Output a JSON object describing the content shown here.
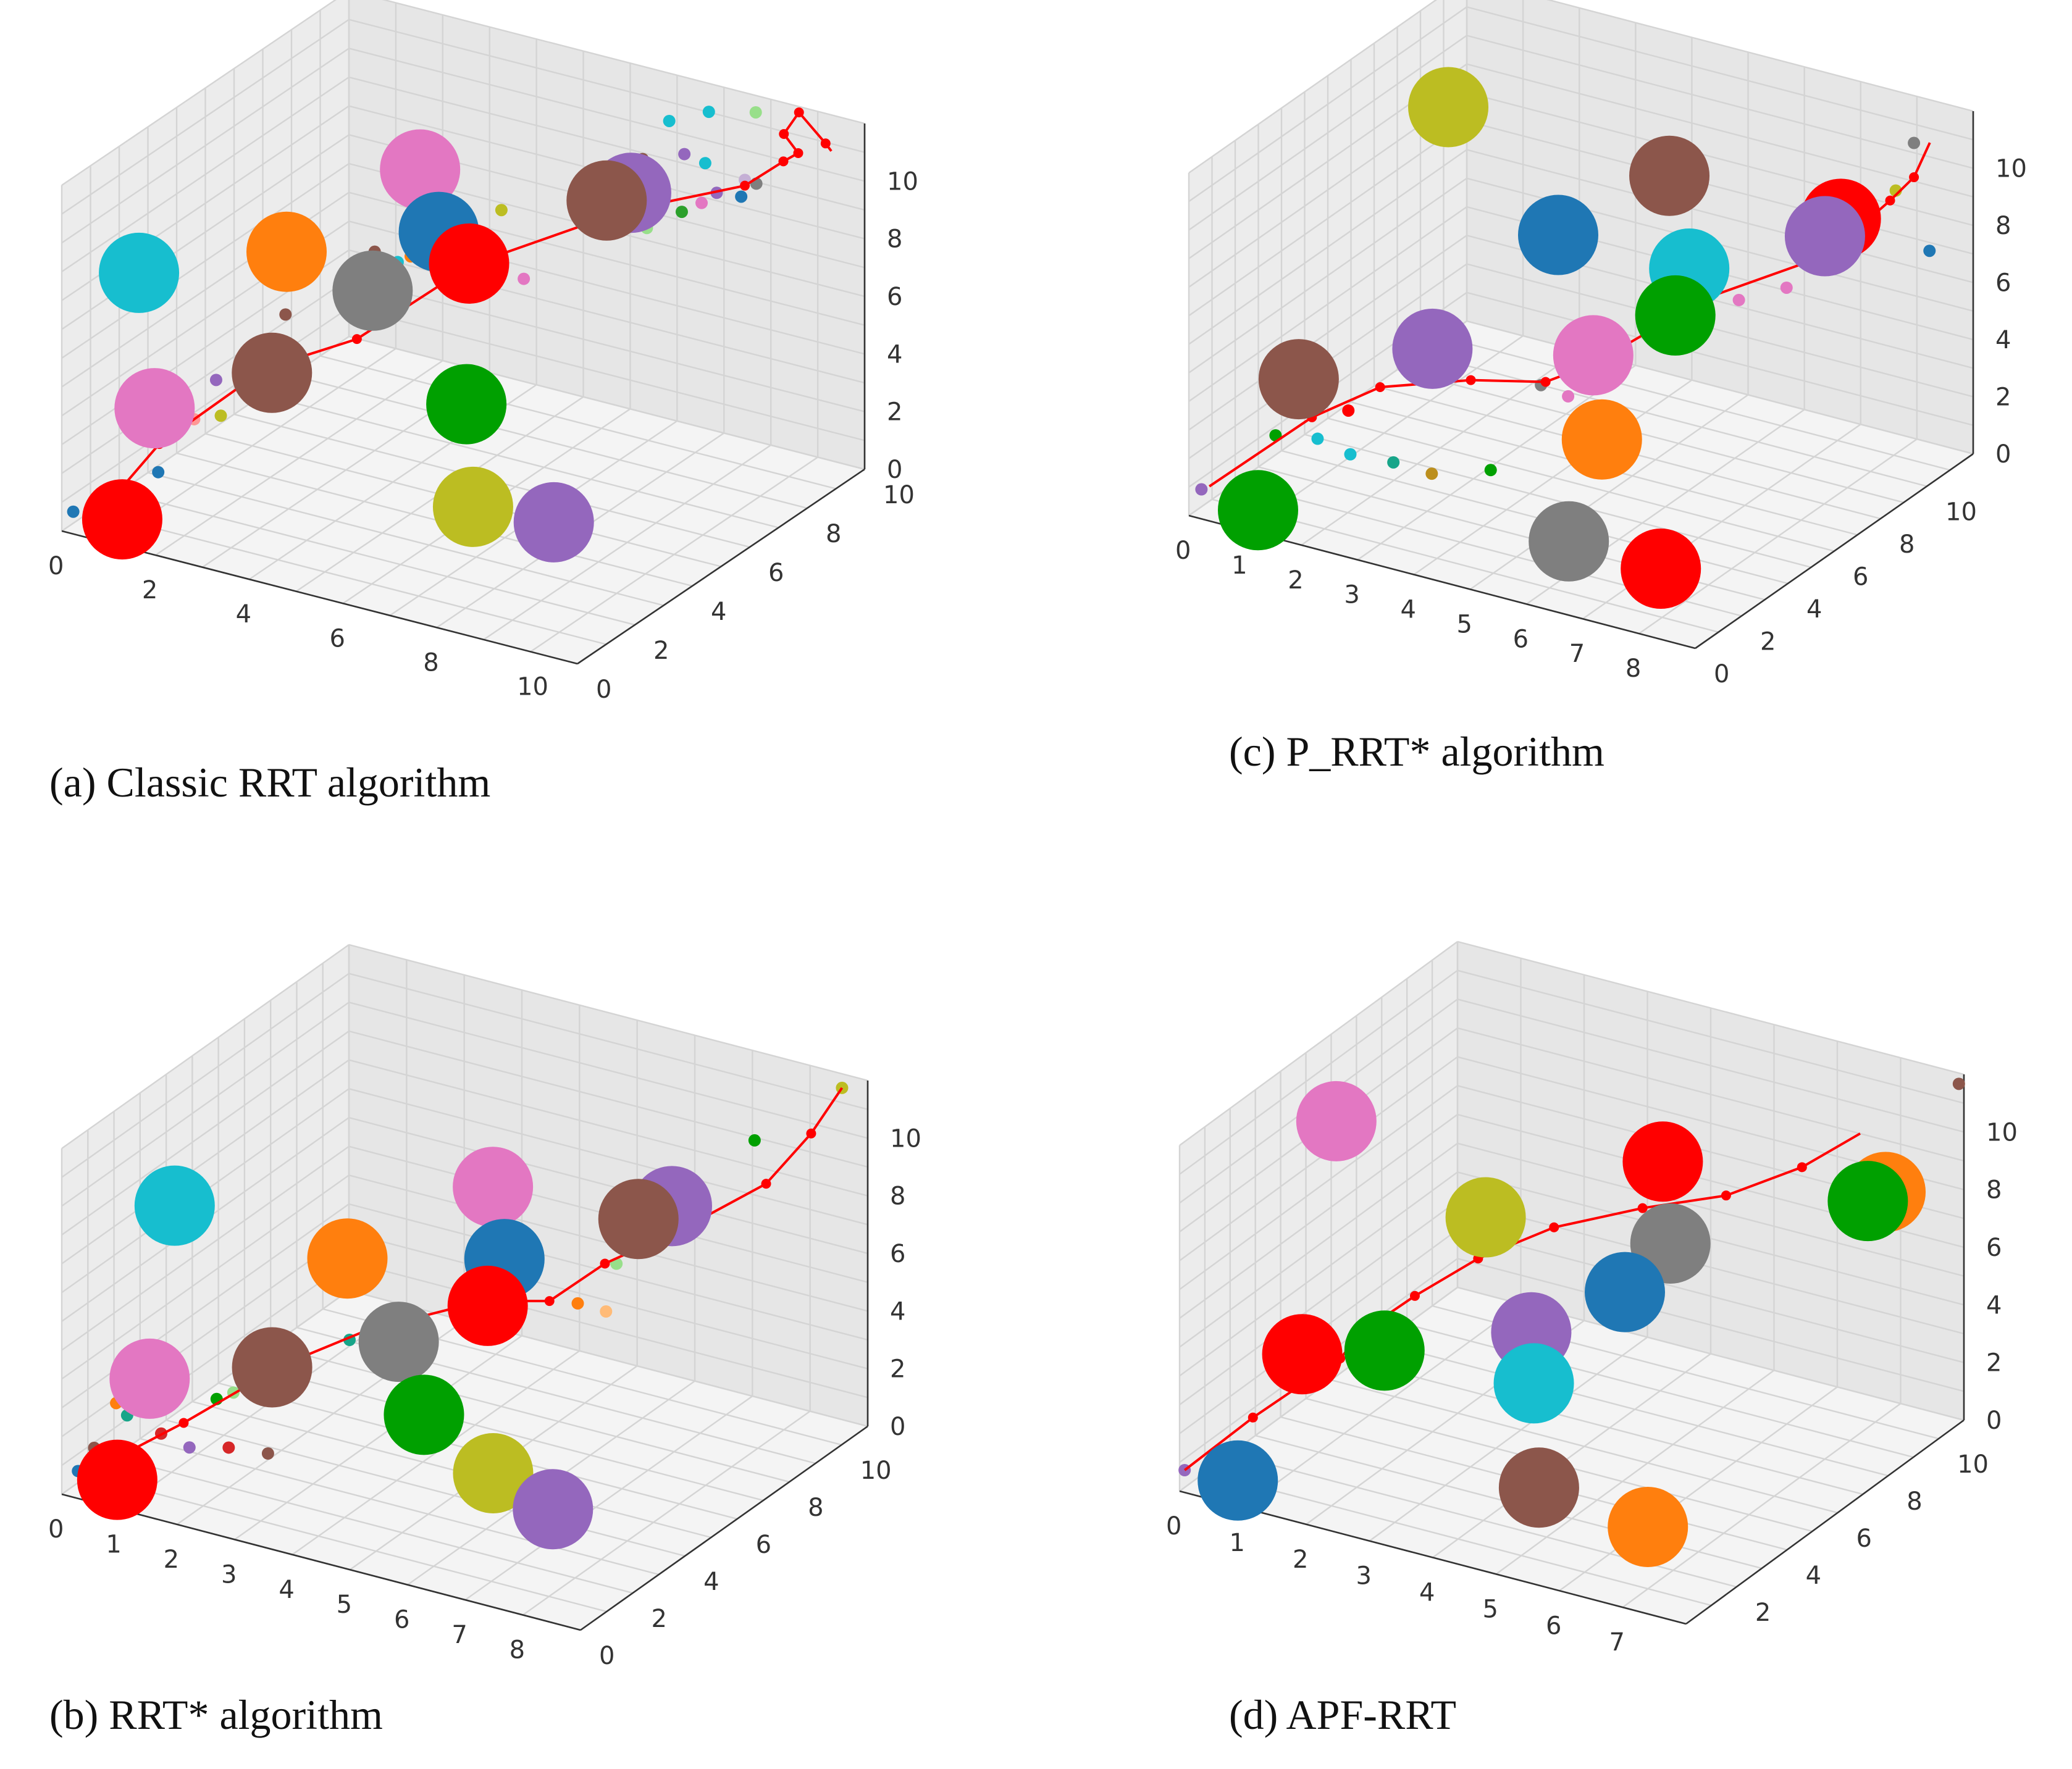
{
  "figure": {
    "background": "#ffffff",
    "path_color": "#ff0000",
    "pane_color": "#f0f0f0"
  },
  "chart_data": [
    {
      "id": "a",
      "type": "scatter",
      "caption": "(a)   Classic RRT algorithm",
      "x_ticks": [
        "0",
        "2",
        "4",
        "6",
        "8",
        "10"
      ],
      "y_ticks": [
        "0",
        "2",
        "4",
        "6",
        "8",
        "10"
      ],
      "z_ticks": [
        "0",
        "2",
        "4",
        "6",
        "8",
        "10"
      ],
      "obstacles": [
        {
          "x": 0.3,
          "y": 2.2,
          "z": 7.6,
          "color": "#17becf"
        },
        {
          "x": 3.6,
          "y": 6.6,
          "z": 9.6,
          "color": "#e377c2"
        },
        {
          "x": 7.0,
          "y": 8.4,
          "z": 9.0,
          "color": "#9467bd"
        },
        {
          "x": 6.6,
          "y": 8.2,
          "z": 8.7,
          "color": "#8c564b"
        },
        {
          "x": 2.1,
          "y": 4.4,
          "z": 7.6,
          "color": "#ff7f0e"
        },
        {
          "x": 4.0,
          "y": 6.6,
          "z": 7.6,
          "color": "#1f77b4"
        },
        {
          "x": 4.4,
          "y": 7.0,
          "z": 6.4,
          "color": "#ff0000"
        },
        {
          "x": 3.2,
          "y": 5.6,
          "z": 5.9,
          "color": "#7f7f7f"
        },
        {
          "x": 1.0,
          "y": 1.6,
          "z": 3.6,
          "color": "#e377c2"
        },
        {
          "x": 2.4,
          "y": 3.4,
          "z": 4.2,
          "color": "#8c564b"
        },
        {
          "x": 5.2,
          "y": 5.6,
          "z": 2.8,
          "color": "#00a000"
        },
        {
          "x": 0.8,
          "y": 0.8,
          "z": 0.2,
          "color": "#ff0000"
        },
        {
          "x": 6.2,
          "y": 4.2,
          "z": 0.6,
          "color": "#bcbd22"
        },
        {
          "x": 7.8,
          "y": 4.4,
          "z": 0.6,
          "color": "#9467bd"
        }
      ],
      "path": [
        [
          0.4,
          0.6,
          0.3
        ],
        [
          1.1,
          1.6,
          2.4
        ],
        [
          2.4,
          3.2,
          4.5
        ],
        [
          3.6,
          4.4,
          5.2
        ],
        [
          4.6,
          6.8,
          6.6
        ],
        [
          6.4,
          9.2,
          7.6
        ],
        [
          8.2,
          10.4,
          8.4
        ],
        [
          8.9,
          10.6,
          9.4
        ],
        [
          9.4,
          10.3,
          10.1
        ],
        [
          9.4,
          9.8,
          11.1
        ],
        [
          9.6,
          10.0,
          11.8
        ],
        [
          9.8,
          10.6,
          10.4
        ],
        [
          9.8,
          10.8,
          10.0
        ]
      ],
      "samples": [
        {
          "x": 0.0,
          "y": 0.4,
          "z": 0.4,
          "color": "#1f77b4"
        },
        {
          "x": 1.2,
          "y": 1.4,
          "z": 1.6,
          "color": "#1f77b4"
        },
        {
          "x": 1.6,
          "y": 2.0,
          "z": 3.2,
          "color": "#ff9896"
        },
        {
          "x": 1.7,
          "y": 2.6,
          "z": 4.2,
          "color": "#9467bd"
        },
        {
          "x": 2.2,
          "y": 4.2,
          "z": 5.6,
          "color": "#8c564b"
        },
        {
          "x": 2.0,
          "y": 4.6,
          "z": 6.4,
          "color": "#ff9896"
        },
        {
          "x": 2.8,
          "y": 5.4,
          "z": 6.3,
          "color": "#e377c2"
        },
        {
          "x": 3.0,
          "y": 6.0,
          "z": 6.9,
          "color": "#8c564b"
        },
        {
          "x": 3.4,
          "y": 6.6,
          "z": 6.5,
          "color": "#ff7f0e"
        },
        {
          "x": 3.6,
          "y": 7.4,
          "z": 7.2,
          "color": "#c49c94"
        },
        {
          "x": 3.4,
          "y": 7.8,
          "z": 7.9,
          "color": "#ff7f0e"
        },
        {
          "x": 3.0,
          "y": 6.8,
          "z": 6.0,
          "color": "#17becf"
        },
        {
          "x": 4.6,
          "y": 7.8,
          "z": 7.8,
          "color": "#bcbd22"
        },
        {
          "x": 5.2,
          "y": 7.6,
          "z": 5.8,
          "color": "#e377c2"
        },
        {
          "x": 6.2,
          "y": 9.4,
          "z": 7.0,
          "color": "#17a589"
        },
        {
          "x": 6.6,
          "y": 9.6,
          "z": 6.8,
          "color": "#98df8a"
        },
        {
          "x": 7.1,
          "y": 10.0,
          "z": 7.3,
          "color": "#2ca02c"
        },
        {
          "x": 7.4,
          "y": 10.2,
          "z": 7.6,
          "color": "#e377c2"
        },
        {
          "x": 7.6,
          "y": 10.4,
          "z": 7.9,
          "color": "#9467bd"
        },
        {
          "x": 8.0,
          "y": 10.6,
          "z": 7.8,
          "color": "#1f77b4"
        },
        {
          "x": 8.2,
          "y": 10.8,
          "z": 8.2,
          "color": "#7f7f7f"
        },
        {
          "x": 8.2,
          "y": 10.4,
          "z": 8.6,
          "color": "#c5b0d5"
        },
        {
          "x": 7.6,
          "y": 10.0,
          "z": 9.2,
          "color": "#17becf"
        },
        {
          "x": 7.4,
          "y": 9.6,
          "z": 9.7,
          "color": "#9467bd"
        },
        {
          "x": 7.0,
          "y": 8.8,
          "z": 9.9,
          "color": "#8c564b"
        },
        {
          "x": 7.2,
          "y": 9.4,
          "z": 10.9,
          "color": "#17becf"
        },
        {
          "x": 7.8,
          "y": 9.8,
          "z": 11.2,
          "color": "#17becf"
        },
        {
          "x": 8.8,
          "y": 9.8,
          "z": 11.6,
          "color": "#98df8a"
        },
        {
          "x": 1.8,
          "y": 2.6,
          "z": 3.0,
          "color": "#bcbd22"
        },
        {
          "x": 2.6,
          "y": 3.6,
          "z": 5.2,
          "color": "#17a589"
        }
      ]
    },
    {
      "id": "c",
      "type": "scatter",
      "caption": "(c)   P_RRT* algorithm",
      "x_ticks": [
        "0",
        "1",
        "2",
        "3",
        "4",
        "5",
        "6",
        "7",
        "8"
      ],
      "y_ticks": [
        "0",
        "2",
        "4",
        "6",
        "8",
        "10"
      ],
      "z_ticks": [
        "0",
        "2",
        "4",
        "6",
        "8",
        "10"
      ],
      "obstacles": [
        {
          "x": 1.4,
          "y": 7.8,
          "z": 10.6,
          "color": "#bcbd22"
        },
        {
          "x": 5.0,
          "y": 8.6,
          "z": 9.6,
          "color": "#8c564b"
        },
        {
          "x": 3.6,
          "y": 7.2,
          "z": 7.6,
          "color": "#1f77b4"
        },
        {
          "x": 5.6,
          "y": 8.0,
          "z": 7.0,
          "color": "#17becf"
        },
        {
          "x": 7.8,
          "y": 9.2,
          "z": 9.2,
          "color": "#ff0000"
        },
        {
          "x": 7.6,
          "y": 9.0,
          "z": 8.6,
          "color": "#9467bd"
        },
        {
          "x": 5.6,
          "y": 7.4,
          "z": 5.7,
          "color": "#00a000"
        },
        {
          "x": 4.8,
          "y": 5.8,
          "z": 4.8,
          "color": "#e377c2"
        },
        {
          "x": 2.6,
          "y": 4.2,
          "z": 4.8,
          "color": "#9467bd"
        },
        {
          "x": 0.8,
          "y": 2.8,
          "z": 3.6,
          "color": "#8c564b"
        },
        {
          "x": 5.2,
          "y": 5.2,
          "z": 2.4,
          "color": "#ff7f0e"
        },
        {
          "x": 0.9,
          "y": 0.8,
          "z": 0.2,
          "color": "#00a000"
        },
        {
          "x": 5.6,
          "y": 2.8,
          "z": 0.4,
          "color": "#7f7f7f"
        },
        {
          "x": 7.4,
          "y": 2.4,
          "z": 0.6,
          "color": "#ff0000"
        }
      ],
      "path": [
        [
          0.2,
          0.4,
          0.9
        ],
        [
          1.2,
          2.4,
          2.7
        ],
        [
          2.0,
          3.4,
          3.6
        ],
        [
          3.2,
          4.4,
          3.9
        ],
        [
          4.2,
          5.2,
          3.9
        ],
        [
          4.8,
          5.8,
          4.5
        ],
        [
          6.0,
          7.8,
          6.3
        ],
        [
          7.4,
          9.6,
          7.5
        ],
        [
          8.1,
          10.6,
          9.2
        ],
        [
          8.4,
          10.9,
          10.0
        ],
        [
          8.6,
          11.1,
          11.2
        ]
      ],
      "samples": [
        {
          "x": 0.1,
          "y": 0.3,
          "z": 0.8,
          "color": "#9467bd"
        },
        {
          "x": 0.8,
          "y": 1.8,
          "z": 2.2,
          "color": "#00a000"
        },
        {
          "x": 1.3,
          "y": 2.4,
          "z": 2.0,
          "color": "#17becf"
        },
        {
          "x": 1.8,
          "y": 2.6,
          "z": 1.6,
          "color": "#17becf"
        },
        {
          "x": 2.4,
          "y": 3.0,
          "z": 1.4,
          "color": "#17a589"
        },
        {
          "x": 3.0,
          "y": 3.2,
          "z": 1.2,
          "color": "#bc8f1d"
        },
        {
          "x": 3.8,
          "y": 3.8,
          "z": 1.4,
          "color": "#00a000"
        },
        {
          "x": 1.6,
          "y": 3.0,
          "z": 2.8,
          "color": "#ff0000"
        },
        {
          "x": 4.2,
          "y": 5.0,
          "z": 3.9,
          "color": "#7f7f7f"
        },
        {
          "x": 4.6,
          "y": 5.2,
          "z": 3.6,
          "color": "#e377c2"
        },
        {
          "x": 6.4,
          "y": 8.2,
          "z": 6.2,
          "color": "#e377c2"
        },
        {
          "x": 7.0,
          "y": 8.8,
          "z": 6.6,
          "color": "#e377c2"
        },
        {
          "x": 8.4,
          "y": 10.9,
          "z": 11.2,
          "color": "#7f7f7f"
        },
        {
          "x": 8.8,
          "y": 10.6,
          "z": 7.8,
          "color": "#1f77b4"
        },
        {
          "x": 8.2,
          "y": 10.6,
          "z": 9.6,
          "color": "#bcbd22"
        }
      ]
    },
    {
      "id": "b",
      "type": "scatter",
      "caption": "(b)   RRT* algorithm",
      "x_ticks": [
        "0",
        "1",
        "2",
        "3",
        "4",
        "5",
        "6",
        "7",
        "8"
      ],
      "y_ticks": [
        "0",
        "2",
        "4",
        "6",
        "8",
        "10"
      ],
      "z_ticks": [
        "0",
        "2",
        "4",
        "6",
        "8",
        "10"
      ],
      "obstacles": [
        {
          "x": 0.6,
          "y": 3.0,
          "z": 8.4,
          "color": "#17becf"
        },
        {
          "x": 4.4,
          "y": 6.8,
          "z": 8.6,
          "color": "#e377c2"
        },
        {
          "x": 2.6,
          "y": 5.2,
          "z": 6.2,
          "color": "#ff7f0e"
        },
        {
          "x": 4.6,
          "y": 6.8,
          "z": 6.2,
          "color": "#1f77b4"
        },
        {
          "x": 6.6,
          "y": 8.8,
          "z": 7.8,
          "color": "#9467bd"
        },
        {
          "x": 6.2,
          "y": 8.4,
          "z": 7.4,
          "color": "#8c564b"
        },
        {
          "x": 4.4,
          "y": 6.6,
          "z": 4.6,
          "color": "#ff0000"
        },
        {
          "x": 3.4,
          "y": 5.4,
          "z": 3.6,
          "color": "#7f7f7f"
        },
        {
          "x": 0.8,
          "y": 1.6,
          "z": 3.4,
          "color": "#e377c2"
        },
        {
          "x": 2.2,
          "y": 3.2,
          "z": 3.5,
          "color": "#8c564b"
        },
        {
          "x": 4.2,
          "y": 4.6,
          "z": 2.0,
          "color": "#00a000"
        },
        {
          "x": 0.6,
          "y": 0.8,
          "z": 0.3,
          "color": "#ff0000"
        },
        {
          "x": 5.4,
          "y": 4.6,
          "z": 0.6,
          "color": "#bcbd22"
        },
        {
          "x": 6.8,
          "y": 3.8,
          "z": 0.6,
          "color": "#9467bd"
        }
      ],
      "path": [
        [
          0.2,
          0.5,
          0.5
        ],
        [
          1.3,
          1.8,
          2.0
        ],
        [
          2.4,
          3.2,
          3.7
        ],
        [
          3.2,
          4.6,
          4.4
        ],
        [
          4.4,
          6.4,
          4.9
        ],
        [
          5.2,
          7.2,
          4.8
        ],
        [
          5.8,
          8.0,
          5.9
        ],
        [
          6.8,
          9.0,
          7.1
        ],
        [
          7.6,
          10.2,
          8.2
        ],
        [
          8.2,
          10.6,
          10.0
        ],
        [
          8.6,
          10.9,
          11.6
        ]
      ],
      "samples": [
        {
          "x": 0.1,
          "y": 0.4,
          "z": 0.6,
          "color": "#1f77b4"
        },
        {
          "x": 0.4,
          "y": 1.2,
          "z": 2.6,
          "color": "#ff7f0e"
        },
        {
          "x": 0.5,
          "y": 1.4,
          "z": 2.1,
          "color": "#17a589"
        },
        {
          "x": 0.2,
          "y": 0.8,
          "z": 1.2,
          "color": "#8c564b"
        },
        {
          "x": 1.6,
          "y": 2.4,
          "z": 2.6,
          "color": "#00a000"
        },
        {
          "x": 1.4,
          "y": 1.8,
          "z": 1.2,
          "color": "#9467bd"
        },
        {
          "x": 1.9,
          "y": 2.2,
          "z": 1.2,
          "color": "#d62728"
        },
        {
          "x": 2.4,
          "y": 2.6,
          "z": 1.0,
          "color": "#8c564b"
        },
        {
          "x": 1.8,
          "y": 2.6,
          "z": 2.8,
          "color": "#98df8a"
        },
        {
          "x": 1.0,
          "y": 1.6,
          "z": 1.6,
          "color": "#d62728"
        },
        {
          "x": 3.0,
          "y": 4.4,
          "z": 4.1,
          "color": "#17a589"
        },
        {
          "x": 5.6,
          "y": 7.4,
          "z": 4.8,
          "color": "#ff7f0e"
        },
        {
          "x": 6.0,
          "y": 7.6,
          "z": 4.6,
          "color": "#ffbb78"
        },
        {
          "x": 6.0,
          "y": 8.0,
          "z": 6.0,
          "color": "#98df8a"
        },
        {
          "x": 7.4,
          "y": 10.2,
          "z": 9.6,
          "color": "#00a000"
        },
        {
          "x": 8.6,
          "y": 10.9,
          "z": 11.6,
          "color": "#bcbd22"
        }
      ]
    },
    {
      "id": "d",
      "type": "scatter",
      "caption": "(d) APF-RRT",
      "x_ticks": [
        "0",
        "1",
        "2",
        "3",
        "4",
        "5",
        "6",
        "7"
      ],
      "y_ticks": [
        "2",
        "4",
        "6",
        "8",
        "10"
      ],
      "z_ticks": [
        "0",
        "2",
        "4",
        "6",
        "8",
        "10"
      ],
      "obstacles": [
        {
          "x": 0.8,
          "y": 4.2,
          "z": 10.6,
          "color": "#e377c2"
        },
        {
          "x": 4.6,
          "y": 7.6,
          "z": 9.2,
          "color": "#ff0000"
        },
        {
          "x": 7.4,
          "y": 9.4,
          "z": 8.6,
          "color": "#ff7f0e"
        },
        {
          "x": 7.2,
          "y": 9.2,
          "z": 8.3,
          "color": "#00a000"
        },
        {
          "x": 2.6,
          "y": 5.6,
          "z": 7.4,
          "color": "#bcbd22"
        },
        {
          "x": 4.8,
          "y": 7.4,
          "z": 6.6,
          "color": "#7f7f7f"
        },
        {
          "x": 4.4,
          "y": 6.6,
          "z": 5.2,
          "color": "#1f77b4"
        },
        {
          "x": 3.4,
          "y": 5.4,
          "z": 4.0,
          "color": "#9467bd"
        },
        {
          "x": 0.9,
          "y": 2.6,
          "z": 3.6,
          "color": "#ff0000"
        },
        {
          "x": 1.8,
          "y": 3.6,
          "z": 3.6,
          "color": "#00a000"
        },
        {
          "x": 3.6,
          "y": 5.0,
          "z": 2.6,
          "color": "#17becf"
        },
        {
          "x": 0.6,
          "y": 0.8,
          "z": 0.2,
          "color": "#1f77b4"
        },
        {
          "x": 4.4,
          "y": 3.2,
          "z": 0.6,
          "color": "#8c564b"
        },
        {
          "x": 6.2,
          "y": 3.0,
          "z": 0.4,
          "color": "#ff7f0e"
        }
      ],
      "path": [
        [
          0.0,
          0.2,
          0.6
        ],
        [
          0.6,
          1.4,
          2.0
        ],
        [
          1.2,
          2.2,
          3.2
        ],
        [
          1.5,
          2.6,
          3.8
        ],
        [
          1.7,
          3.0,
          4.6
        ],
        [
          2.2,
          3.8,
          5.6
        ],
        [
          2.8,
          4.8,
          6.6
        ],
        [
          3.6,
          5.8,
          7.5
        ],
        [
          4.6,
          6.8,
          8.1
        ],
        [
          5.6,
          7.6,
          8.6
        ],
        [
          6.4,
          8.6,
          9.4
        ],
        [
          7.0,
          9.4,
          10.4
        ]
      ],
      "samples": [
        {
          "x": 0.0,
          "y": 0.2,
          "z": 0.6,
          "color": "#9467bd"
        },
        {
          "x": 8.0,
          "y": 10.8,
          "z": 11.8,
          "color": "#8c564b"
        }
      ]
    }
  ]
}
